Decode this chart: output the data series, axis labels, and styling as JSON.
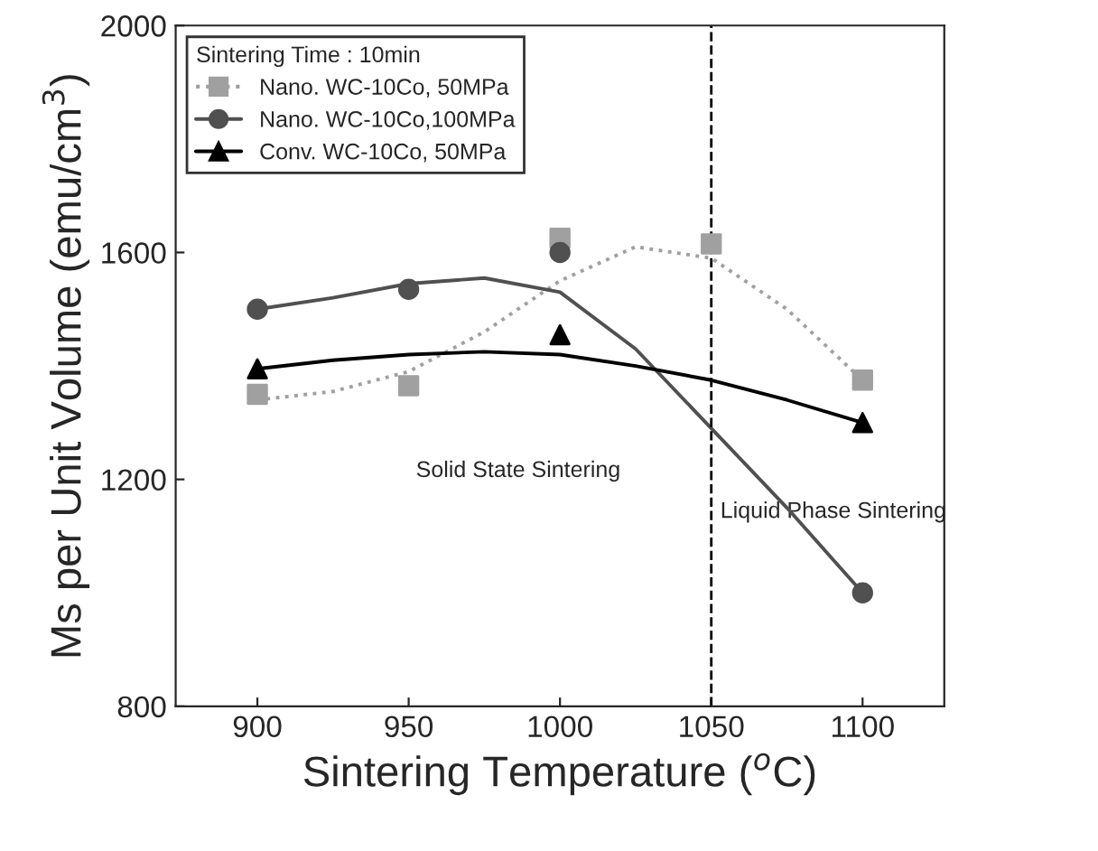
{
  "chart_data": {
    "type": "scatter",
    "xlabel": "Sintering Temperature ($^{o}$C)",
    "ylabel": "Ms per Unit Volume (emu/cm$^{3}$)",
    "legend_title": "Sintering Time : 10min",
    "legend": "top left",
    "xlim": [
      873,
      1127
    ],
    "xticks": [
      900,
      950,
      1000,
      1050,
      1100
    ],
    "ylim": [
      800,
      2000
    ],
    "yticks": [
      800,
      1200,
      1600,
      2000
    ],
    "grid": false,
    "series": [
      {
        "name": "Nano. WC-10Co, 50MPa",
        "color": "#a0a0a0",
        "marker": "square",
        "line_style": "dotted",
        "x": [
          900,
          950,
          1000,
          1050,
          1100
        ],
        "values": [
          1350,
          1365,
          1625,
          1615,
          1375
        ]
      },
      {
        "name": "Nano. WC-10Co,100MPa",
        "color": "#505050",
        "marker": "circle",
        "line_style": "solid",
        "x": [
          900,
          950,
          1000,
          1100
        ],
        "values": [
          1500,
          1535,
          1600,
          1000
        ]
      },
      {
        "name": "Conv. WC-10Co, 50MPa",
        "color": "#000000",
        "marker": "triangle",
        "line_style": "solid",
        "x": [
          900,
          1000,
          1100
        ],
        "values": [
          1395,
          1455,
          1300
        ]
      },
      {
        "type": "line",
        "color": "#a0a0a0",
        "line_style": "dotted",
        "x": [
          900,
          925,
          950,
          975,
          1000,
          1025,
          1050,
          1075,
          1100
        ],
        "values": [
          1340,
          1355,
          1390,
          1460,
          1550,
          1610,
          1590,
          1500,
          1375
        ]
      },
      {
        "type": "line",
        "color": "#505050",
        "line_style": "solid",
        "x": [
          900,
          925,
          950,
          975,
          1000,
          1025,
          1050,
          1075,
          1100
        ],
        "values": [
          1500,
          1520,
          1545,
          1555,
          1530,
          1430,
          1290,
          1150,
          1000
        ]
      },
      {
        "type": "line",
        "color": "#000000",
        "line_style": "solid",
        "x": [
          900,
          925,
          950,
          975,
          1000,
          1025,
          1050,
          1075,
          1100
        ],
        "values": [
          1395,
          1410,
          1420,
          1425,
          1420,
          1400,
          1375,
          1340,
          1300
        ]
      }
    ],
    "ref_lines": [
      {
        "axis": "x",
        "value": 1050,
        "color": "#000000",
        "line_style": "dashed"
      }
    ],
    "annotations": [
      "Solid State Sintering",
      "Liquid Phase Sintering"
    ]
  }
}
